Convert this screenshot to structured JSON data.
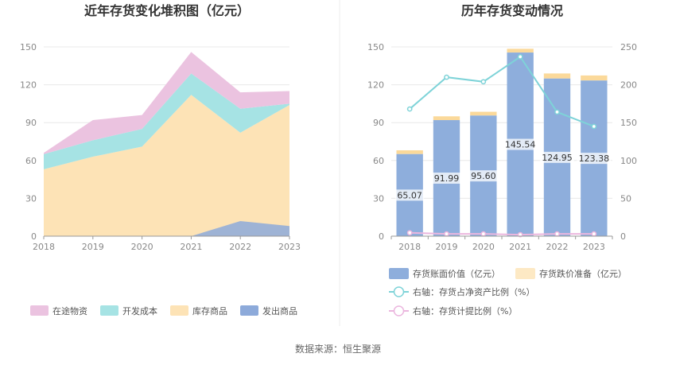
{
  "chart_data": [
    {
      "type": "area",
      "title": "近年存货变化堆积图（亿元）",
      "categories": [
        "2018",
        "2019",
        "2020",
        "2021",
        "2022",
        "2023"
      ],
      "ylim": [
        0,
        150
      ],
      "y_ticks": [
        "0",
        "30",
        "60",
        "90",
        "120",
        "150"
      ],
      "grid": true,
      "legend_position": "bottom",
      "series": [
        {
          "name": "在途物资",
          "color": "#EBC3E0",
          "values": [
            1,
            16,
            11,
            17,
            13,
            10
          ]
        },
        {
          "name": "开发成本",
          "color": "#A6E3E4",
          "values": [
            12,
            13,
            14,
            17,
            19,
            1
          ]
        },
        {
          "name": "库存商品",
          "color": "#FDE3B6",
          "values": [
            53,
            63,
            71,
            112,
            82,
            104
          ]
        },
        {
          "name": "发出商品",
          "color": "#8DAADA",
          "values": [
            0,
            0,
            0,
            0,
            12,
            8
          ]
        }
      ]
    },
    {
      "type": "bar",
      "title": "历年存货变动情况",
      "categories": [
        "2018",
        "2019",
        "2020",
        "2021",
        "2022",
        "2023"
      ],
      "ylim": [
        0,
        150
      ],
      "y_ticks": [
        "0",
        "30",
        "60",
        "90",
        "120",
        "150"
      ],
      "y2lim": [
        0,
        250
      ],
      "y2_ticks": [
        "0",
        "50",
        "100",
        "150",
        "200",
        "250"
      ],
      "grid": true,
      "legend_position": "bottom",
      "series": [
        {
          "name": "存货账面价值（亿元）",
          "color": "#8EAEDC",
          "values": [
            65.07,
            91.99,
            95.6,
            145.54,
            124.95,
            123.38
          ],
          "labels": [
            "65.07",
            "91.99",
            "95.60",
            "145.54",
            "124.95",
            "123.38"
          ]
        },
        {
          "name": "存货跌价准备（亿元）",
          "color": "#FBD99A",
          "values": [
            3,
            3,
            3,
            3,
            4,
            4
          ]
        },
        {
          "name": "右轴：存货占净资产比例（%）",
          "color": "#7ED3D8",
          "axis": "right",
          "values": [
            168,
            210,
            204,
            237,
            164,
            145
          ]
        },
        {
          "name": "右轴：存货计提比例（%）",
          "color": "#EBB6DE",
          "axis": "right",
          "values": [
            4.5,
            3,
            3,
            2,
            3,
            3
          ]
        }
      ]
    }
  ],
  "footer": {
    "source": "数据来源：恒生聚源"
  }
}
